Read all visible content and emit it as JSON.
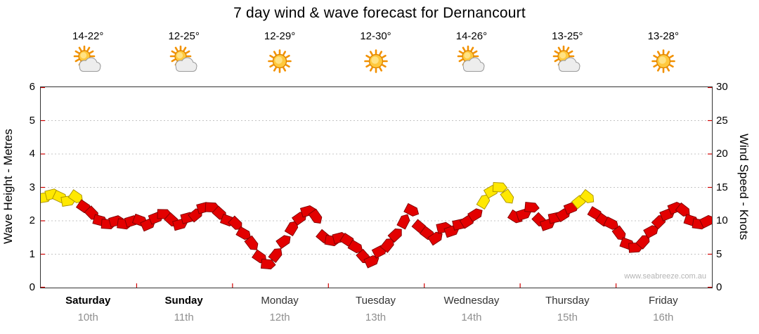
{
  "title": "7 day wind & wave forecast for Dernancourt",
  "watermark": "www.seabreeze.com.au",
  "axes": {
    "left_label": "Wave Height - Metres",
    "right_label": "Wind Speed - Knots",
    "left_ticks": [
      0,
      1,
      2,
      3,
      4,
      5,
      6
    ],
    "right_ticks": [
      0,
      5,
      10,
      15,
      20,
      25,
      30
    ]
  },
  "days": [
    {
      "name": "Saturday",
      "date": "10th",
      "temp": "14-22°",
      "icon": "sun-cloud",
      "bold": true
    },
    {
      "name": "Sunday",
      "date": "11th",
      "temp": "12-25°",
      "icon": "sun-cloud",
      "bold": true
    },
    {
      "name": "Monday",
      "date": "12th",
      "temp": "12-29°",
      "icon": "sun",
      "bold": false
    },
    {
      "name": "Tuesday",
      "date": "13th",
      "temp": "12-30°",
      "icon": "sun",
      "bold": false
    },
    {
      "name": "Wednesday",
      "date": "14th",
      "temp": "14-26°",
      "icon": "sun-cloud",
      "bold": false
    },
    {
      "name": "Thursday",
      "date": "15th",
      "temp": "13-25°",
      "icon": "sun-cloud",
      "bold": false
    },
    {
      "name": "Friday",
      "date": "16th",
      "temp": "13-28°",
      "icon": "sun",
      "bold": false
    }
  ],
  "chart_data": {
    "type": "line",
    "subtype": "wind-barb-ribbon",
    "categories": [
      "Saturday",
      "Sunday",
      "Monday",
      "Tuesday",
      "Wednesday",
      "Thursday",
      "Friday"
    ],
    "points_per_day": 12,
    "series": [
      {
        "name": "Wind Speed (knots)",
        "values": [
          13.5,
          14,
          13.5,
          13,
          13.5,
          12,
          11,
          10,
          9.5,
          10,
          9.5,
          10,
          10,
          9.5,
          10.5,
          11,
          10,
          9.5,
          10.5,
          11,
          12,
          12,
          11,
          10,
          9.5,
          8,
          6.5,
          4.5,
          3.5,
          5,
          7,
          9,
          10.5,
          11.5,
          10.5,
          7.5,
          7,
          7.5,
          7,
          6,
          4.5,
          4,
          5.5,
          6.5,
          8,
          10,
          11.5,
          9,
          8,
          7.5,
          9,
          8.5,
          9.5,
          10,
          11,
          13,
          14.5,
          15,
          13.5,
          10.5,
          11,
          12,
          10,
          9.5,
          10.5,
          11,
          12,
          13,
          13.5,
          11,
          10,
          9.5,
          8,
          6.5,
          6,
          7,
          8.5,
          10,
          11,
          12,
          11.5,
          10,
          9.5,
          10
        ]
      }
    ],
    "ylabel_left": "Wave Height - Metres",
    "ylabel_right": "Wind Speed - Knots",
    "ylim_left": [
      0,
      6
    ],
    "ylim_right": [
      0,
      30
    ],
    "grid": "horizontal-dotted",
    "yellow_threshold_knots": 13,
    "colors": {
      "red_barb": "#E30000",
      "red_barb_outline": "#7E0000",
      "yellow_barb": "#FFE800",
      "yellow_barb_outline": "#A89000",
      "tick": "#D00000",
      "gridline": "#C4C4C4"
    }
  }
}
